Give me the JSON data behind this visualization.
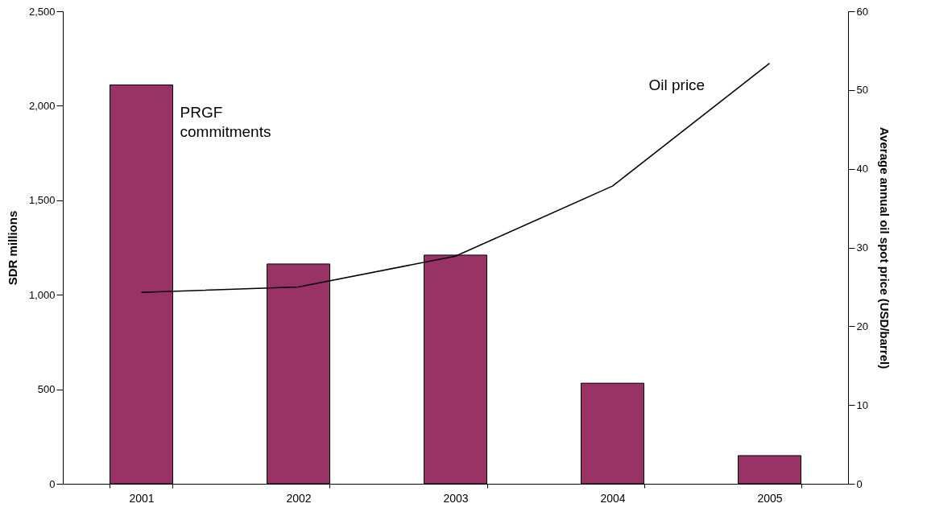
{
  "chart_data": {
    "type": "bar",
    "categories": [
      "2001",
      "2002",
      "2003",
      "2004",
      "2005"
    ],
    "ylabel": "SDR millions",
    "y2label": "Average annual oil spot price (USD/barrel)",
    "ylim": [
      0,
      2500
    ],
    "yticks": [
      0,
      500,
      {
        "value": 1000,
        "label": "1,000"
      },
      {
        "value": 1500,
        "label": "1,500"
      },
      {
        "value": 2000,
        "label": "2,000"
      },
      {
        "value": 2500,
        "label": "2,500"
      }
    ],
    "y2lim": [
      0,
      60
    ],
    "y2ticks": [
      0,
      10,
      20,
      30,
      40,
      50,
      60
    ],
    "series": [
      {
        "name": "PRGF commitments",
        "color": "#993366",
        "values": [
          2110,
          1163,
          1210,
          532,
          149
        ]
      },
      {
        "name": "Oil price",
        "type": "line",
        "axis": "y2",
        "color": "#000000",
        "values": [
          24.3,
          25.0,
          28.9,
          37.8,
          53.4
        ]
      }
    ]
  }
}
